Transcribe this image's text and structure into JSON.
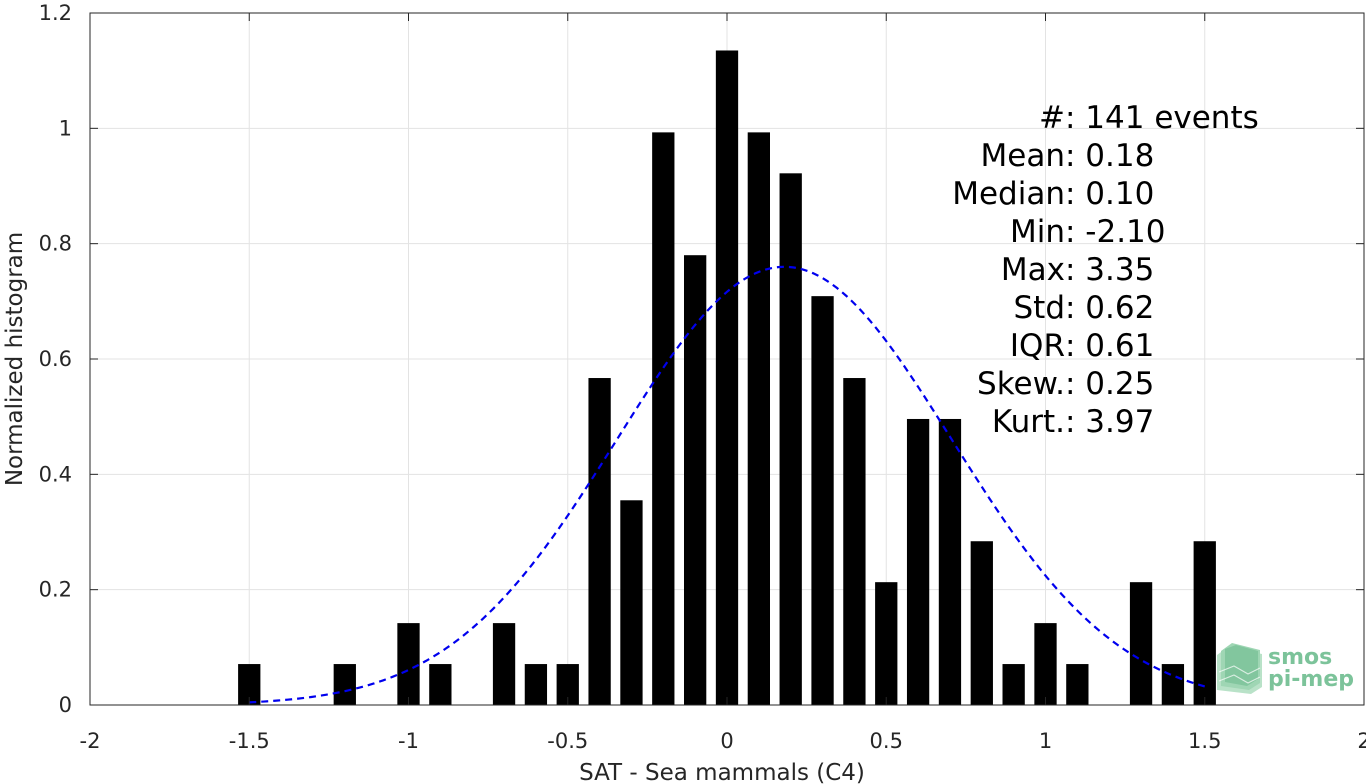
{
  "chart_data": {
    "type": "bar",
    "title": "",
    "xlabel": "SAT - Sea mammals (C4)",
    "ylabel": "Normalized histogram",
    "xlim": [
      -2,
      2
    ],
    "ylim": [
      0,
      1.2
    ],
    "xticks": [
      -2,
      -1.5,
      -1,
      -0.5,
      0,
      0.5,
      1,
      1.5,
      2
    ],
    "xtick_labels": [
      "-2",
      "-1.5",
      "-1",
      "-0.5",
      "0",
      "0.5",
      "1",
      "1.5",
      "2"
    ],
    "yticks": [
      0,
      0.2,
      0.4,
      0.6,
      0.8,
      1,
      1.2
    ],
    "ytick_labels": [
      "0",
      "0.2",
      "0.4",
      "0.6",
      "0.8",
      "1",
      "1.2"
    ],
    "grid": true,
    "bar_width": 0.07,
    "bar_color": "#000000",
    "bars": [
      {
        "x": -1.5,
        "value": 0.071
      },
      {
        "x": -1.2,
        "value": 0.071
      },
      {
        "x": -1.0,
        "value": 0.142
      },
      {
        "x": -0.9,
        "value": 0.071
      },
      {
        "x": -0.7,
        "value": 0.142
      },
      {
        "x": -0.6,
        "value": 0.071
      },
      {
        "x": -0.5,
        "value": 0.071
      },
      {
        "x": -0.4,
        "value": 0.567
      },
      {
        "x": -0.3,
        "value": 0.355
      },
      {
        "x": -0.2,
        "value": 0.993
      },
      {
        "x": -0.1,
        "value": 0.78
      },
      {
        "x": 0.0,
        "value": 1.135
      },
      {
        "x": 0.1,
        "value": 0.993
      },
      {
        "x": 0.2,
        "value": 0.922
      },
      {
        "x": 0.3,
        "value": 0.709
      },
      {
        "x": 0.4,
        "value": 0.567
      },
      {
        "x": 0.5,
        "value": 0.213
      },
      {
        "x": 0.6,
        "value": 0.496
      },
      {
        "x": 0.7,
        "value": 0.496
      },
      {
        "x": 0.8,
        "value": 0.284
      },
      {
        "x": 0.9,
        "value": 0.071
      },
      {
        "x": 1.0,
        "value": 0.142
      },
      {
        "x": 1.1,
        "value": 0.071
      },
      {
        "x": 1.3,
        "value": 0.213
      },
      {
        "x": 1.4,
        "value": 0.071
      },
      {
        "x": 1.5,
        "value": 0.284
      }
    ],
    "fit_curve": {
      "type": "normal",
      "mean": 0.18,
      "std": 0.525,
      "x_range": [
        -1.5,
        1.5
      ],
      "color": "#0000ee",
      "style": "dashed"
    },
    "stats_legend_placement": "top-right",
    "stats": [
      {
        "label": "#  ",
        "sep": ": ",
        "value": "141 events"
      },
      {
        "label": "Mean ",
        "sep": ": ",
        "value": "0.18"
      },
      {
        "label": "Median ",
        "sep": ": ",
        "value": "0.10"
      },
      {
        "label": "Min ",
        "sep": ": ",
        "value": "-2.10"
      },
      {
        "label": "Max ",
        "sep": ": ",
        "value": "3.35"
      },
      {
        "label": "Std ",
        "sep": ": ",
        "value": "0.62"
      },
      {
        "label": "IQR ",
        "sep": ": ",
        "value": "0.61"
      },
      {
        "label": "Skew. ",
        "sep": ": ",
        "value": "0.25"
      },
      {
        "label": "Kurt. ",
        "sep": ": ",
        "value": "3.97"
      }
    ]
  },
  "logo": {
    "line1": "smos",
    "line2": "pi-mep",
    "color": "#7cc39a"
  }
}
